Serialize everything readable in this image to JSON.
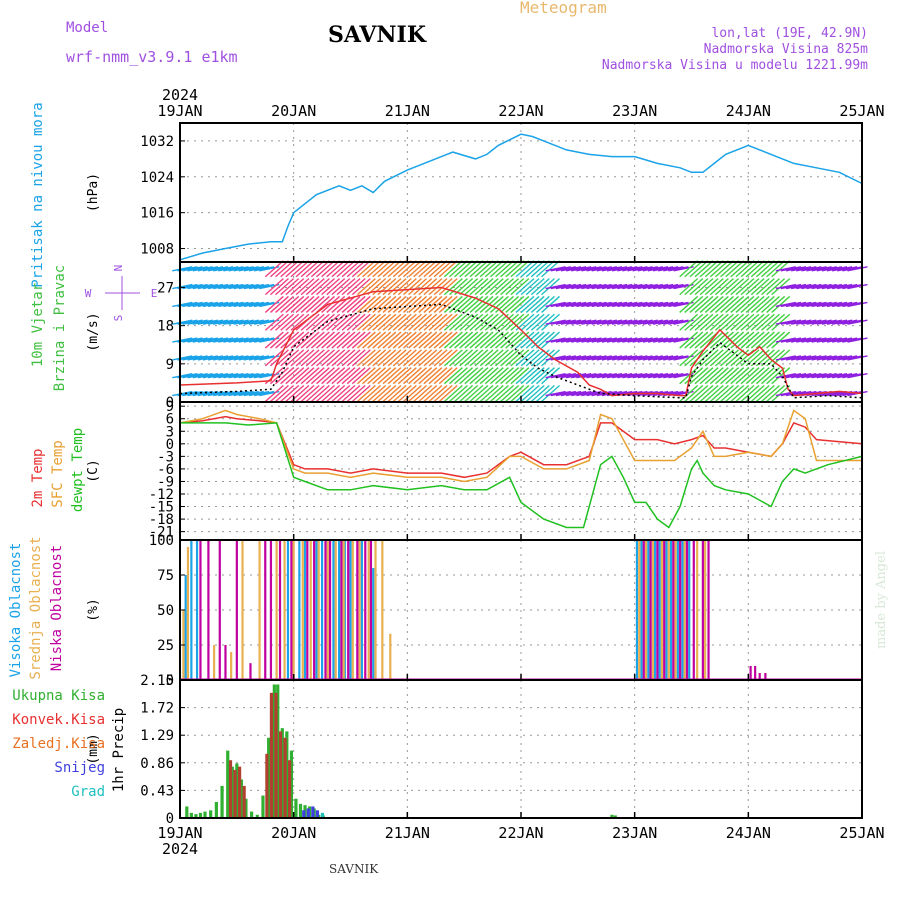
{
  "header": {
    "title": "SAVNIK",
    "subtitle": "Meteogram",
    "model_label": "Model",
    "model_name": "wrf-nmm_v3.9.1 e1km",
    "location": "lon,lat (19E, 42.9N)",
    "elevation": "Nadmorska Visina 825m",
    "model_elevation": "Nadmorska Visina u modelu 1221.99m"
  },
  "footer": {
    "station": "SAVNIK"
  },
  "chart_data": {
    "type": "line",
    "x_axis": {
      "year": "2024",
      "ticks": [
        "19JAN",
        "20JAN",
        "21JAN",
        "22JAN",
        "23JAN",
        "24JAN",
        "25JAN"
      ],
      "range_days": [
        0,
        6
      ]
    },
    "watermark": "made by Angel",
    "panels": [
      {
        "id": "pressure",
        "type": "line",
        "ylabel": "Pritisak na nivou mora",
        "unit": "(hPa)",
        "yticks": [
          1008,
          1016,
          1024,
          1032
        ],
        "ylim": [
          1005,
          1036
        ],
        "grid": true,
        "series": [
          {
            "color": "#1aa3e8",
            "x": [
              0,
              0.2,
              0.4,
              0.6,
              0.8,
              0.9,
              0.95,
              1.0,
              1.1,
              1.2,
              1.4,
              1.5,
              1.6,
              1.7,
              1.8,
              2.0,
              2.2,
              2.4,
              2.6,
              2.7,
              2.8,
              3.0,
              3.1,
              3.2,
              3.4,
              3.6,
              3.8,
              4.0,
              4.2,
              4.4,
              4.5,
              4.6,
              4.7,
              4.8,
              5.0,
              5.2,
              5.4,
              5.6,
              5.8,
              6.0
            ],
            "values": [
              1005.5,
              1007,
              1008,
              1009,
              1009.5,
              1009.5,
              1013,
              1016,
              1018,
              1020,
              1022,
              1021,
              1022,
              1020.5,
              1023,
              1025.5,
              1027.5,
              1029.5,
              1028,
              1029,
              1031,
              1033.5,
              1033,
              1032,
              1030,
              1029,
              1028.5,
              1028.5,
              1027,
              1026,
              1025,
              1025,
              1027,
              1029,
              1031,
              1029,
              1027,
              1026,
              1025,
              1022.5
            ]
          }
        ]
      },
      {
        "id": "wind",
        "type": "line",
        "ylabel": [
          "10m Vjetar",
          "Brzina i Pravac"
        ],
        "unit": "(m/s)",
        "compass": [
          "N",
          "W",
          "E",
          "S"
        ],
        "yticks": [
          0,
          9,
          18,
          27
        ],
        "ylim": [
          0,
          33
        ],
        "grid": true,
        "series": [
          {
            "name": "gust",
            "color": "#e83030",
            "x": [
              0,
              0.5,
              0.8,
              0.85,
              1.0,
              1.3,
              1.7,
              2.0,
              2.3,
              2.6,
              2.8,
              3.0,
              3.15,
              3.3,
              3.5,
              3.6,
              3.7,
              3.8,
              4.0,
              4.2,
              4.4,
              4.45,
              4.5,
              4.6,
              4.75,
              4.9,
              5.0,
              5.1,
              5.2,
              5.3,
              5.35,
              5.4,
              5.6,
              5.8,
              6.0
            ],
            "values": [
              4,
              4.5,
              5,
              9,
              17,
              23,
              26,
              26.5,
              27,
              24.5,
              22,
              17,
              13,
              10,
              7,
              4,
              3,
              1.5,
              2,
              2,
              1.5,
              1.5,
              8,
              12,
              17,
              13,
              11,
              13,
              10,
              8,
              3,
              1.5,
              2,
              2.5,
              2
            ]
          },
          {
            "name": "mean",
            "color": "#000000",
            "x": [
              0,
              0.5,
              0.8,
              0.9,
              1.0,
              1.3,
              1.7,
              2.0,
              2.3,
              2.6,
              2.8,
              3.0,
              3.15,
              3.3,
              3.5,
              3.7,
              4.0,
              4.4,
              4.45,
              4.5,
              4.6,
              4.75,
              4.9,
              5.0,
              5.2,
              5.3,
              5.4,
              5.7,
              6.0
            ],
            "values": [
              2,
              2.5,
              3,
              7,
              13,
              19,
              22,
              22.5,
              23,
              20,
              17,
              11,
              8,
              6,
              4,
              2,
              1.5,
              1,
              1,
              6,
              10,
              14,
              11,
              9,
              9,
              6,
              1,
              1.5,
              1
            ]
          }
        ]
      },
      {
        "id": "temperature",
        "type": "line",
        "ylabel": [
          "2m Temp",
          "SFC Temp",
          "dewpt Temp"
        ],
        "unit": "(C)",
        "yticks": [
          -21,
          -18,
          -15,
          -12,
          -9,
          -6,
          -3,
          0,
          3,
          6,
          9
        ],
        "ylim": [
          -23,
          10
        ],
        "grid": true,
        "series": [
          {
            "name": "2m Temp",
            "color": "#e83030",
            "x": [
              0,
              0.2,
              0.4,
              0.5,
              0.7,
              0.85,
              1.0,
              1.1,
              1.3,
              1.5,
              1.7,
              2.0,
              2.3,
              2.5,
              2.7,
              2.9,
              3.0,
              3.2,
              3.4,
              3.6,
              3.7,
              3.8,
              4.0,
              4.2,
              4.35,
              4.5,
              4.6,
              4.7,
              4.8,
              5.0,
              5.2,
              5.3,
              5.4,
              5.5,
              5.6,
              6.0
            ],
            "values": [
              5,
              5.5,
              6.5,
              6,
              5.5,
              5,
              -5,
              -6,
              -6,
              -7,
              -6,
              -7,
              -7,
              -8,
              -7,
              -3,
              -2,
              -5,
              -5,
              -3,
              5,
              5,
              1,
              1,
              0,
              1,
              2,
              -1,
              -1,
              -2,
              -3,
              0,
              5,
              4,
              1,
              0
            ]
          },
          {
            "name": "SFC Temp",
            "color": "#e8a030",
            "x": [
              0,
              0.2,
              0.4,
              0.5,
              0.7,
              0.85,
              1.0,
              1.1,
              1.3,
              1.5,
              1.7,
              2.0,
              2.3,
              2.5,
              2.7,
              2.9,
              3.0,
              3.2,
              3.4,
              3.6,
              3.7,
              3.8,
              4.0,
              4.2,
              4.35,
              4.5,
              4.6,
              4.7,
              4.8,
              5.0,
              5.2,
              5.3,
              5.4,
              5.5,
              5.6,
              6.0
            ],
            "values": [
              5,
              6,
              8,
              7,
              6,
              5,
              -6,
              -7,
              -7,
              -8,
              -7,
              -8,
              -8,
              -9,
              -8,
              -3,
              -3,
              -6,
              -6,
              -4,
              7,
              6,
              -4,
              -4,
              -4,
              -1,
              3,
              -3,
              -3,
              -2,
              -3,
              0,
              8,
              6,
              -4,
              -4
            ]
          },
          {
            "name": "dewpt Temp",
            "color": "#20c020",
            "x": [
              0,
              0.2,
              0.4,
              0.6,
              0.85,
              1.0,
              1.1,
              1.3,
              1.5,
              1.7,
              2.0,
              2.3,
              2.5,
              2.7,
              2.9,
              3.0,
              3.2,
              3.4,
              3.55,
              3.7,
              3.8,
              3.9,
              4.0,
              4.1,
              4.2,
              4.3,
              4.4,
              4.5,
              4.55,
              4.6,
              4.7,
              4.8,
              5.0,
              5.2,
              5.3,
              5.4,
              5.5,
              5.7,
              6.0
            ],
            "values": [
              5,
              5,
              5,
              4.5,
              5,
              -8,
              -9,
              -11,
              -11,
              -10,
              -11,
              -10,
              -11,
              -11,
              -8,
              -14,
              -18,
              -20,
              -20,
              -5,
              -3,
              -8,
              -14,
              -14,
              -18,
              -20,
              -15,
              -6,
              -4,
              -7,
              -10,
              -11,
              -12,
              -15,
              -9,
              -6,
              -7,
              -5,
              -3
            ]
          }
        ]
      },
      {
        "id": "clouds",
        "type": "bar",
        "ylabel": [
          "Visoka Oblacnost",
          "Srednja Oblacnost",
          "Niska Oblacnost"
        ],
        "unit": "(%)",
        "yticks": [
          0,
          25,
          50,
          75,
          100
        ],
        "ylim": [
          0,
          100
        ],
        "grid": true,
        "series": [
          {
            "name": "Visoka Oblacnost",
            "color": "#1aa3e8",
            "x": [
              0.05,
              0.1,
              0.15,
              0.95,
              1.05,
              1.1,
              1.2,
              1.25,
              1.35,
              1.4,
              1.45,
              1.5,
              1.6,
              1.7,
              4.02,
              4.06,
              4.12,
              4.18,
              4.22,
              4.28,
              4.32,
              4.38,
              4.42,
              4.48
            ],
            "values": [
              75,
              100,
              100,
              100,
              100,
              100,
              100,
              100,
              100,
              100,
              100,
              100,
              100,
              80,
              100,
              100,
              100,
              100,
              100,
              100,
              100,
              100,
              100,
              100
            ]
          },
          {
            "name": "Srednja Oblacnost",
            "color": "#e8b050",
            "x": [
              0.03,
              0.07,
              0.3,
              0.45,
              0.55,
              0.7,
              0.85,
              0.92,
              1.0,
              1.08,
              1.15,
              1.22,
              1.3,
              1.37,
              1.44,
              1.52,
              1.58,
              1.66,
              1.72,
              1.78,
              1.85,
              4.04,
              4.1,
              4.16,
              4.24,
              4.3,
              4.36,
              4.44,
              4.55,
              4.62
            ],
            "values": [
              50,
              95,
              25,
              20,
              100,
              100,
              100,
              100,
              100,
              100,
              100,
              100,
              100,
              100,
              100,
              100,
              100,
              100,
              100,
              100,
              33,
              100,
              100,
              100,
              100,
              100,
              100,
              100,
              100,
              100
            ]
          },
          {
            "name": "Niska Oblacnost",
            "color": "#c000a0",
            "x": [
              0.18,
              0.25,
              0.35,
              0.4,
              0.5,
              0.62,
              0.75,
              0.8,
              0.88,
              0.98,
              1.12,
              1.18,
              1.28,
              1.32,
              1.42,
              1.48,
              1.56,
              1.63,
              1.68,
              4.08,
              4.14,
              4.2,
              4.26,
              4.34,
              4.4,
              4.46,
              4.52,
              4.6,
              4.65,
              5.02,
              5.06,
              5.1,
              5.15
            ],
            "values": [
              100,
              100,
              100,
              25,
              100,
              12,
              100,
              100,
              100,
              100,
              100,
              100,
              100,
              100,
              100,
              100,
              100,
              100,
              100,
              100,
              100,
              100,
              100,
              100,
              100,
              100,
              100,
              100,
              100,
              10,
              10,
              5,
              5
            ]
          }
        ]
      },
      {
        "id": "precipitation",
        "type": "bar",
        "ylabel": "1hr Precip",
        "unit": "(mm)",
        "yticks": [
          0,
          0.43,
          0.86,
          1.29,
          1.72,
          2.15
        ],
        "ylim": [
          0,
          2.15
        ],
        "grid": true,
        "legend": [
          {
            "name": "Ukupna Kisa",
            "color": "#30b030"
          },
          {
            "name": "Konvek.Kisa",
            "color": "#e83030"
          },
          {
            "name": "Zaledj.Kisa",
            "color": "#e87020"
          },
          {
            "name": "Snijeg",
            "color": "#4040e0"
          },
          {
            "name": "Grad",
            "color": "#20c0c0"
          }
        ],
        "series": [
          {
            "name": "Ukupna Kisa",
            "color": "#30b030",
            "x": [
              0.06,
              0.1,
              0.14,
              0.18,
              0.22,
              0.27,
              0.32,
              0.37,
              0.42,
              0.46,
              0.5,
              0.54,
              0.58,
              0.63,
              0.68,
              0.73,
              0.78,
              0.83,
              0.86,
              0.9,
              0.94,
              0.98,
              1.02,
              1.06,
              1.1,
              1.14,
              1.18,
              1.22,
              1.26,
              3.8,
              3.83
            ],
            "values": [
              0.18,
              0.08,
              0.06,
              0.08,
              0.1,
              0.12,
              0.25,
              0.5,
              1.05,
              0.8,
              0.85,
              0.6,
              0.3,
              0.1,
              0.05,
              0.35,
              1.25,
              2.08,
              2.08,
              1.4,
              1.35,
              1.05,
              0.3,
              0.22,
              0.2,
              0.18,
              0.15,
              0.05,
              0.04,
              0.05,
              0.04
            ]
          },
          {
            "name": "Konvek.Kisa",
            "color": "#b04030",
            "x": [
              0.44,
              0.48,
              0.52,
              0.56,
              0.76,
              0.8,
              0.84,
              0.88,
              0.92,
              0.96
            ],
            "values": [
              0.9,
              0.75,
              0.8,
              0.5,
              1.0,
              1.95,
              1.95,
              1.35,
              1.25,
              0.9
            ]
          },
          {
            "name": "Snijeg",
            "color": "#4040e0",
            "x": [
              1.08,
              1.12,
              1.16,
              1.2
            ],
            "values": [
              0.12,
              0.15,
              0.18,
              0.12
            ]
          },
          {
            "name": "Grad",
            "color": "#20c0c0",
            "x": [
              1.24
            ],
            "values": [
              0.08
            ]
          }
        ]
      }
    ]
  }
}
